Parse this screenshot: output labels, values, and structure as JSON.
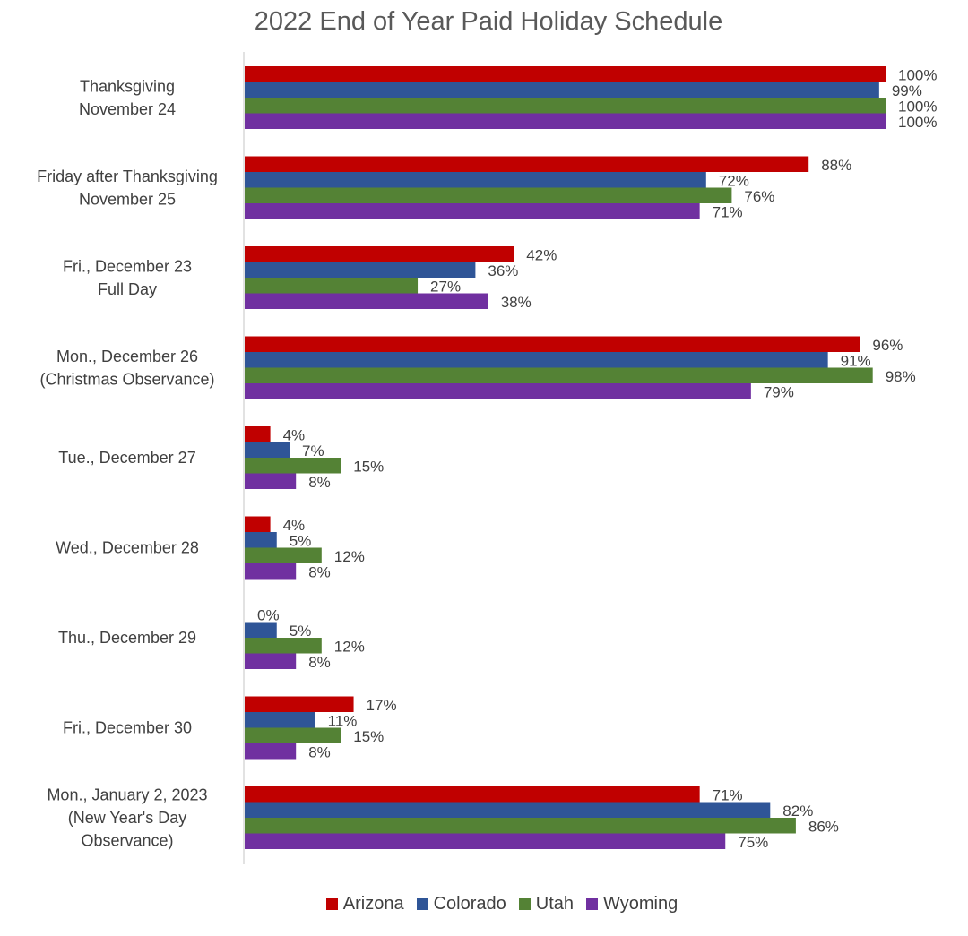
{
  "chart_data": {
    "type": "bar",
    "orientation": "horizontal",
    "title": "2022 End of Year Paid Holiday Schedule",
    "xlabel": "",
    "ylabel": "",
    "xlim": [
      0,
      100
    ],
    "grid": false,
    "legend_position": "bottom",
    "value_suffix": "%",
    "categories": [
      [
        "Thanksgiving",
        "November 24"
      ],
      [
        "Friday after Thanksgiving",
        "November 25"
      ],
      [
        "Fri., December 23",
        "Full Day"
      ],
      [
        "Mon., December 26",
        "(Christmas Observance)"
      ],
      [
        "Tue., December 27"
      ],
      [
        "Wed., December 28"
      ],
      [
        "Thu., December 29"
      ],
      [
        "Fri., December 30"
      ],
      [
        "Mon., January 2, 2023",
        "(New Year's Day",
        "Observance)"
      ]
    ],
    "series": [
      {
        "name": "Arizona",
        "color": "#c00000",
        "values": [
          100,
          88,
          42,
          96,
          4,
          4,
          0,
          17,
          71
        ]
      },
      {
        "name": "Colorado",
        "color": "#2f5597",
        "values": [
          99,
          72,
          36,
          91,
          7,
          5,
          5,
          11,
          82
        ]
      },
      {
        "name": "Utah",
        "color": "#548235",
        "values": [
          100,
          76,
          27,
          98,
          15,
          12,
          12,
          15,
          86
        ]
      },
      {
        "name": "Wyoming",
        "color": "#7030a0",
        "values": [
          100,
          71,
          38,
          79,
          8,
          8,
          8,
          8,
          75
        ]
      }
    ]
  }
}
